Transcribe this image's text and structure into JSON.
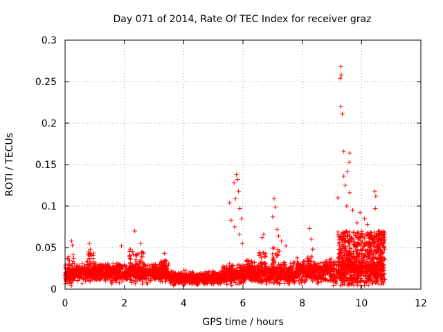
{
  "chart_data": {
    "type": "scatter",
    "title": "Day 071 of 2014, Rate Of TEC Index for receiver graz",
    "xlabel": "GPS time / hours",
    "ylabel": "ROTI / TECUs",
    "xlim": [
      0,
      12
    ],
    "ylim": [
      0,
      0.3
    ],
    "x_ticks": [
      0,
      2,
      4,
      6,
      8,
      10,
      12
    ],
    "x_tick_labels": [
      "0",
      "2",
      "4",
      "6",
      "8",
      "10",
      "12"
    ],
    "y_ticks": [
      0,
      0.05,
      0.1,
      0.15,
      0.2,
      0.25,
      0.3
    ],
    "y_tick_labels": [
      "0",
      "0.05",
      "0.1",
      "0.15",
      "0.2",
      "0.25",
      "0.3"
    ],
    "grid": true,
    "marker": "+",
    "color": "#ff0000",
    "series": [
      {
        "name": "ROTI",
        "notable_points": [
          {
            "x": 0.22,
            "y": 0.058
          },
          {
            "x": 0.25,
            "y": 0.053
          },
          {
            "x": 0.82,
            "y": 0.055
          },
          {
            "x": 0.85,
            "y": 0.048
          },
          {
            "x": 2.35,
            "y": 0.07
          },
          {
            "x": 2.55,
            "y": 0.055
          },
          {
            "x": 1.9,
            "y": 0.052
          },
          {
            "x": 3.35,
            "y": 0.043
          },
          {
            "x": 5.55,
            "y": 0.104
          },
          {
            "x": 5.6,
            "y": 0.083
          },
          {
            "x": 5.7,
            "y": 0.128
          },
          {
            "x": 5.78,
            "y": 0.138
          },
          {
            "x": 5.82,
            "y": 0.132
          },
          {
            "x": 5.85,
            "y": 0.118
          },
          {
            "x": 5.75,
            "y": 0.109
          },
          {
            "x": 5.9,
            "y": 0.097
          },
          {
            "x": 5.95,
            "y": 0.085
          },
          {
            "x": 5.72,
            "y": 0.075
          },
          {
            "x": 5.88,
            "y": 0.066
          },
          {
            "x": 5.98,
            "y": 0.055
          },
          {
            "x": 6.65,
            "y": 0.062
          },
          {
            "x": 6.7,
            "y": 0.066
          },
          {
            "x": 7.05,
            "y": 0.109
          },
          {
            "x": 7.1,
            "y": 0.099
          },
          {
            "x": 7.0,
            "y": 0.087
          },
          {
            "x": 7.15,
            "y": 0.072
          },
          {
            "x": 7.2,
            "y": 0.064
          },
          {
            "x": 7.3,
            "y": 0.058
          },
          {
            "x": 7.45,
            "y": 0.052
          },
          {
            "x": 8.25,
            "y": 0.073
          },
          {
            "x": 8.3,
            "y": 0.06
          },
          {
            "x": 8.35,
            "y": 0.048
          },
          {
            "x": 9.3,
            "y": 0.268
          },
          {
            "x": 9.32,
            "y": 0.258
          },
          {
            "x": 9.28,
            "y": 0.254
          },
          {
            "x": 9.3,
            "y": 0.22
          },
          {
            "x": 9.35,
            "y": 0.211
          },
          {
            "x": 9.4,
            "y": 0.166
          },
          {
            "x": 9.6,
            "y": 0.164
          },
          {
            "x": 9.58,
            "y": 0.153
          },
          {
            "x": 9.4,
            "y": 0.136
          },
          {
            "x": 9.52,
            "y": 0.142
          },
          {
            "x": 9.45,
            "y": 0.125
          },
          {
            "x": 9.6,
            "y": 0.116
          },
          {
            "x": 9.2,
            "y": 0.11
          },
          {
            "x": 9.5,
            "y": 0.1
          },
          {
            "x": 9.7,
            "y": 0.095
          },
          {
            "x": 10.45,
            "y": 0.118
          },
          {
            "x": 10.48,
            "y": 0.112
          },
          {
            "x": 10.46,
            "y": 0.097
          },
          {
            "x": 9.95,
            "y": 0.092
          },
          {
            "x": 10.1,
            "y": 0.085
          },
          {
            "x": 9.85,
            "y": 0.08
          },
          {
            "x": 10.2,
            "y": 0.078
          },
          {
            "x": 10.6,
            "y": 0.07
          },
          {
            "x": 10.7,
            "y": 0.065
          }
        ]
      }
    ]
  }
}
